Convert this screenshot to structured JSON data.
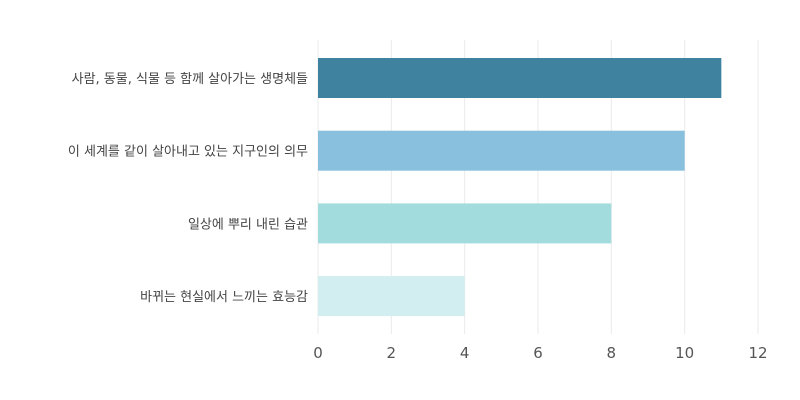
{
  "chart_data": {
    "type": "bar",
    "orientation": "horizontal",
    "categories": [
      "사람, 동물, 식물 등 함께 살아가는 생명체들",
      "이 세계를 같이 살아내고 있는 지구인의 의무",
      "일상에 뿌리 내린 습관",
      "바뀌는 현실에서 느끼는 효능감"
    ],
    "values": [
      11,
      10,
      8,
      4
    ],
    "colors": [
      "#3f82a0",
      "#88c0de",
      "#a3dcdc",
      "#d2eef0"
    ],
    "xlim": [
      0,
      12
    ],
    "xticks": [
      "0",
      "2",
      "4",
      "6",
      "8",
      "10",
      "12"
    ],
    "grid": "vertical",
    "legend": "none"
  }
}
